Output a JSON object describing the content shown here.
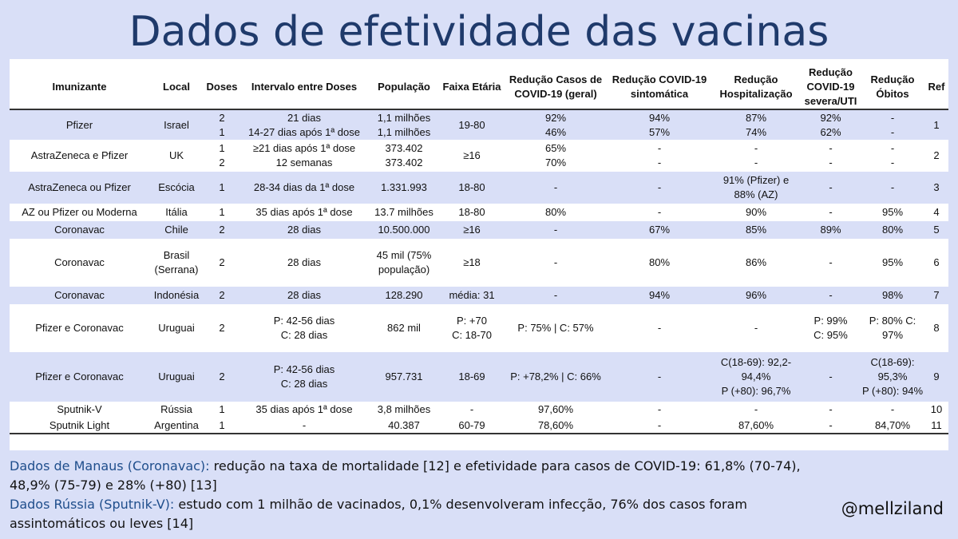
{
  "title": "Dados de efetividade das vacinas",
  "table": {
    "headers": [
      "Imunizante",
      "Local",
      "Doses",
      "Intervalo entre Doses",
      "População",
      "Faixa Etária",
      "Redução Casos de COVID-19 (geral)",
      "Redução COVID-19 sintomática",
      "Redução Hospitalização",
      "Redução COVID-19 severa/UTI",
      "Redução Óbitos",
      "Ref"
    ],
    "rows": [
      {
        "shaded": true,
        "h": 38,
        "cells": [
          "Pfizer",
          "Israel",
          "2\n1",
          "21 dias\n14-27 dias após 1ª dose",
          "1,1 milhões\n1,1 milhões",
          "19-80",
          "92%\n46%",
          "94%\n57%",
          "87%\n74%",
          "92%\n62%",
          "-\n-",
          "1"
        ]
      },
      {
        "shaded": false,
        "h": 40,
        "cells": [
          "AstraZeneca e Pfizer",
          "UK",
          "1\n2",
          "≥21 dias após 1ª dose\n12 semanas",
          "373.402\n373.402",
          "≥16",
          "65%\n70%",
          "-\n-",
          "-\n-",
          "-\n-",
          "-\n-",
          "2"
        ]
      },
      {
        "shaded": true,
        "h": 40,
        "cells": [
          "AstraZeneca ou Pfizer",
          "Escócia",
          "1",
          "28-34 dias da 1ª dose",
          "1.331.993",
          "18-80",
          "-",
          "-",
          "91% (Pfizer) e\n88% (AZ)",
          "-",
          "-",
          "3"
        ]
      },
      {
        "shaded": false,
        "h": 22,
        "cells": [
          "AZ ou Pfizer ou Moderna",
          "Itália",
          "1",
          "35 dias após 1ª dose",
          "13.7 milhões",
          "18-80",
          "80%",
          "-",
          "90%",
          "-",
          "95%",
          "4"
        ]
      },
      {
        "shaded": true,
        "h": 22,
        "cells": [
          "Coronavac",
          "Chile",
          "2",
          "28 dias",
          "10.500.000",
          "≥16",
          "-",
          "67%",
          "85%",
          "89%",
          "80%",
          "5"
        ]
      },
      {
        "shaded": false,
        "h": 60,
        "cells": [
          "Coronavac",
          "Brasil\n(Serrana)",
          "2",
          "28 dias",
          "45 mil (75%\npopulação)",
          "≥18",
          "-",
          "80%",
          "86%",
          "-",
          "95%",
          "6"
        ]
      },
      {
        "shaded": true,
        "h": 22,
        "cells": [
          "Coronavac",
          "Indonésia",
          "2",
          "28 dias",
          "128.290",
          "média: 31",
          "-",
          "94%",
          "96%",
          "-",
          "98%",
          "7"
        ]
      },
      {
        "shaded": false,
        "h": 60,
        "cells": [
          "Pfizer e Coronavac",
          "Uruguai",
          "2",
          "P: 42-56 dias\nC: 28 dias",
          "862 mil",
          "P: +70\nC: 18-70",
          "P: 75% | C: 57%",
          "-",
          "-",
          "P: 99%\nC: 95%",
          "P: 80%      C:\n97%",
          "8"
        ]
      },
      {
        "shaded": true,
        "h": 62,
        "cells": [
          "Pfizer e Coronavac",
          "Uruguai",
          "2",
          "P: 42-56 dias\nC: 28 dias",
          "957.731",
          "18-69",
          "P: +78,2% | C: 66%",
          "-",
          "C(18-69): 92,2-\n94,4%\nP (+80): 96,7%",
          "-",
          "C(18-69):\n95,3%\nP (+80): 94%",
          "9"
        ]
      },
      {
        "shaded": false,
        "h": 20,
        "cells": [
          "Sputnik-V",
          "Rússia",
          "1",
          "35 dias após 1ª dose",
          "3,8 milhões",
          "-",
          "97,60%",
          "-",
          "-",
          "-",
          "-",
          "10"
        ]
      },
      {
        "shaded": false,
        "h": 20,
        "last": true,
        "cells": [
          "Sputnik Light",
          "Argentina",
          "1",
          "-",
          "40.387",
          "60-79",
          "78,60%",
          "-",
          "87,60%",
          "-",
          "84,70%",
          "11"
        ]
      }
    ]
  },
  "footer": {
    "manaus_label": "Dados de Manaus (Coronavac):",
    "manaus_text": " redução na taxa de mortalidade [12] e efetividade para casos de COVID-19: 61,8% (70-74), 48,9% (75-79) e 28% (+80) [13]",
    "russia_label": "Dados Rússia (Sputnik-V):",
    "russia_text": " estudo com 1 milhão de vacinados, 0,1% desenvolveram infecção, 76% dos casos foram assintomáticos ou leves [14]"
  },
  "handle": "@mellziland",
  "colors": {
    "title": "#1f3a6b",
    "highlight": "#1f4e8c",
    "shade": "#d9dff7"
  }
}
